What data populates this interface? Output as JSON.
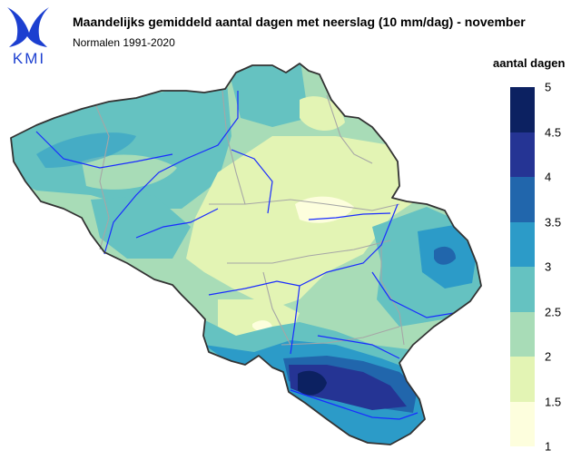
{
  "header": {
    "title": "Maandelijks gemiddeld aantal dagen met neerslag (10 mm/dag) - november",
    "subtitle": "Normalen 1991-2020",
    "logo_text": "KMI"
  },
  "legend": {
    "title": "aantal dagen",
    "ticks": [
      "5",
      "4.5",
      "4",
      "3.5",
      "3",
      "2.5",
      "2",
      "1.5",
      "1"
    ],
    "bins": [
      {
        "from": 4.5,
        "to": 5,
        "color": "#0c2161"
      },
      {
        "from": 4,
        "to": 4.5,
        "color": "#253494"
      },
      {
        "from": 3.5,
        "to": 4,
        "color": "#2166ac"
      },
      {
        "from": 3,
        "to": 3.5,
        "color": "#2c9bc8"
      },
      {
        "from": 2.5,
        "to": 3,
        "color": "#65c2c1"
      },
      {
        "from": 2,
        "to": 2.5,
        "color": "#a8dcb7"
      },
      {
        "from": 1.5,
        "to": 2,
        "color": "#e3f4b4"
      },
      {
        "from": 1,
        "to": 1.5,
        "color": "#fdfedd"
      }
    ]
  },
  "colors": {
    "border": "#333333",
    "rivers": "#1a2cff",
    "provinces": "#a6a6a6",
    "logo": "#1c3fd0"
  }
}
